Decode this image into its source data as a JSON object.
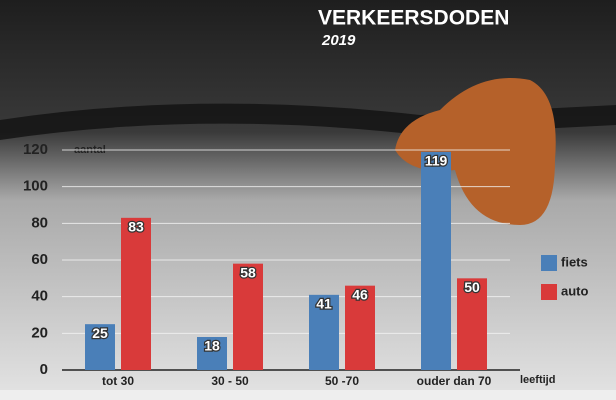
{
  "chart_data": {
    "type": "bar",
    "title": "VERKEERSDODEN",
    "subtitle": "2019",
    "y_label": "aantal",
    "x_label": "leeftijd",
    "categories": [
      "tot 30",
      "30 - 50",
      "50 -70",
      "ouder dan 70"
    ],
    "series": [
      {
        "name": "fiets",
        "color": "#4a7fb8",
        "values": [
          25,
          18,
          41,
          119
        ]
      },
      {
        "name": "auto",
        "color": "#d93a3a",
        "values": [
          83,
          58,
          46,
          50
        ]
      }
    ],
    "ylim": [
      0,
      120
    ],
    "yticks": [
      0,
      20,
      40,
      60,
      80,
      100,
      120
    ],
    "grid": true
  }
}
